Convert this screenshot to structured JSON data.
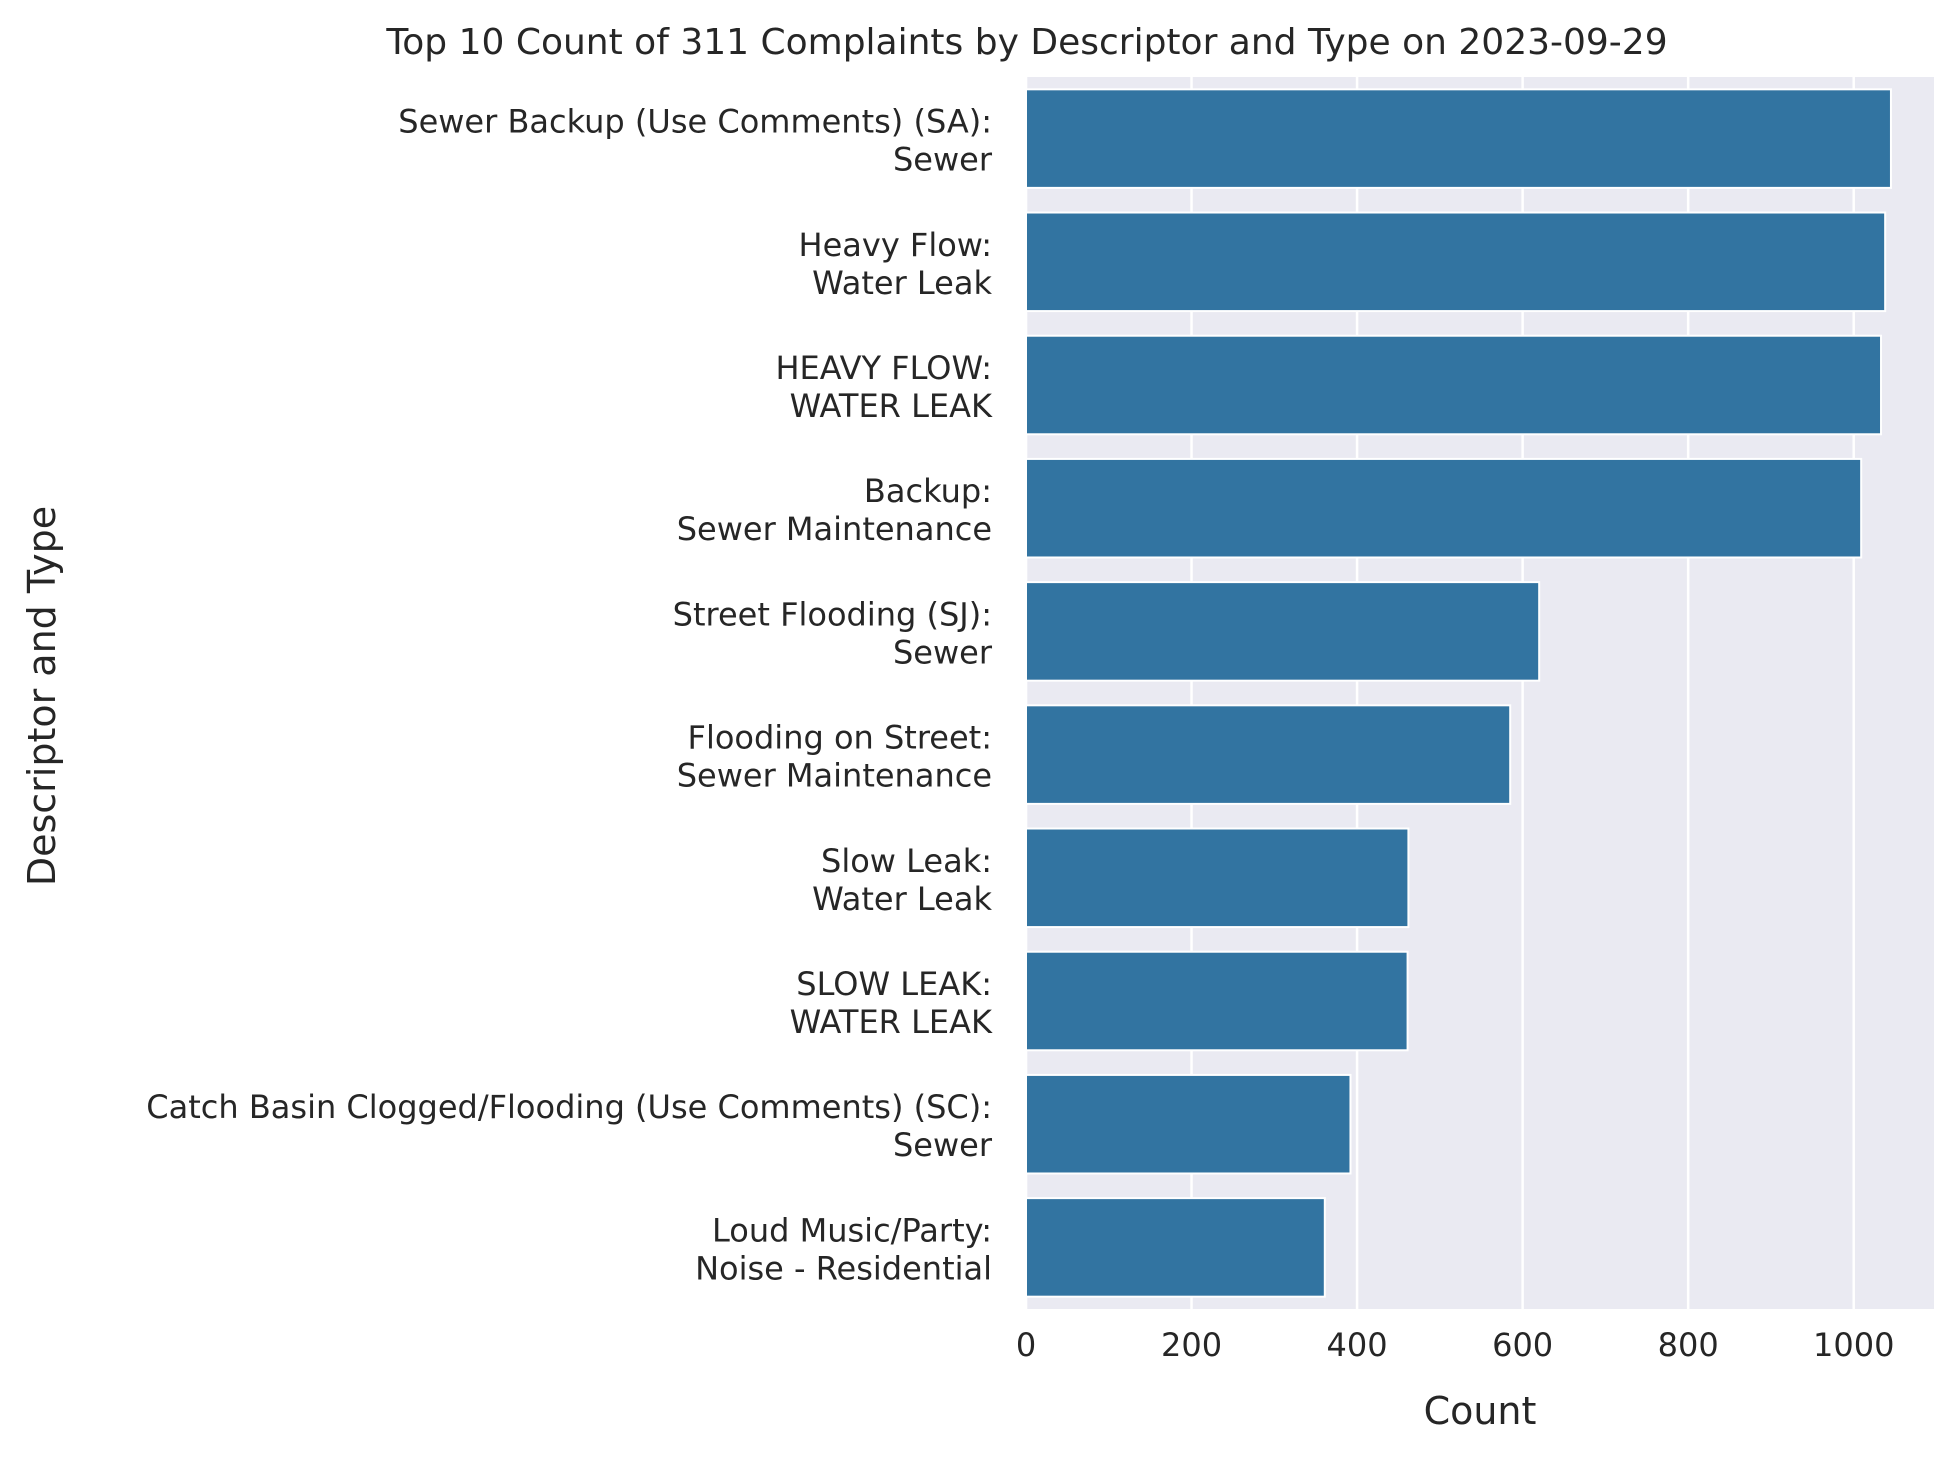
{
  "chart_data": {
    "type": "bar",
    "orientation": "horizontal",
    "title": "Top 10 Count of 311 Complaints by Descriptor and Type on 2023-09-29",
    "xlabel": "Count",
    "ylabel": "Descriptor and Type",
    "xlim": [
      0,
      1097
    ],
    "xticks": [
      0,
      200,
      400,
      600,
      800,
      1000
    ],
    "grid": true,
    "categories": [
      [
        "Sewer Backup (Use Comments) (SA):",
        "Sewer"
      ],
      [
        "Heavy Flow:",
        "Water Leak"
      ],
      [
        "HEAVY FLOW:",
        "WATER LEAK"
      ],
      [
        "Backup:",
        "Sewer Maintenance"
      ],
      [
        "Street Flooding (SJ):",
        "Sewer"
      ],
      [
        "Flooding on Street:",
        "Sewer Maintenance"
      ],
      [
        "Slow Leak:",
        "Water Leak"
      ],
      [
        "SLOW LEAK:",
        "WATER LEAK"
      ],
      [
        "Catch Basin Clogged/Flooding (Use Comments) (SC):",
        "Sewer"
      ],
      [
        "Loud Music/Party:",
        "Noise - Residential"
      ]
    ],
    "values": [
      1045,
      1038,
      1033,
      1009,
      620,
      585,
      462,
      461,
      392,
      361
    ],
    "colors": {
      "bar": "#3274a1",
      "plot_bg": "#eaeaf2",
      "grid": "#ffffff",
      "text": "#262626"
    }
  }
}
